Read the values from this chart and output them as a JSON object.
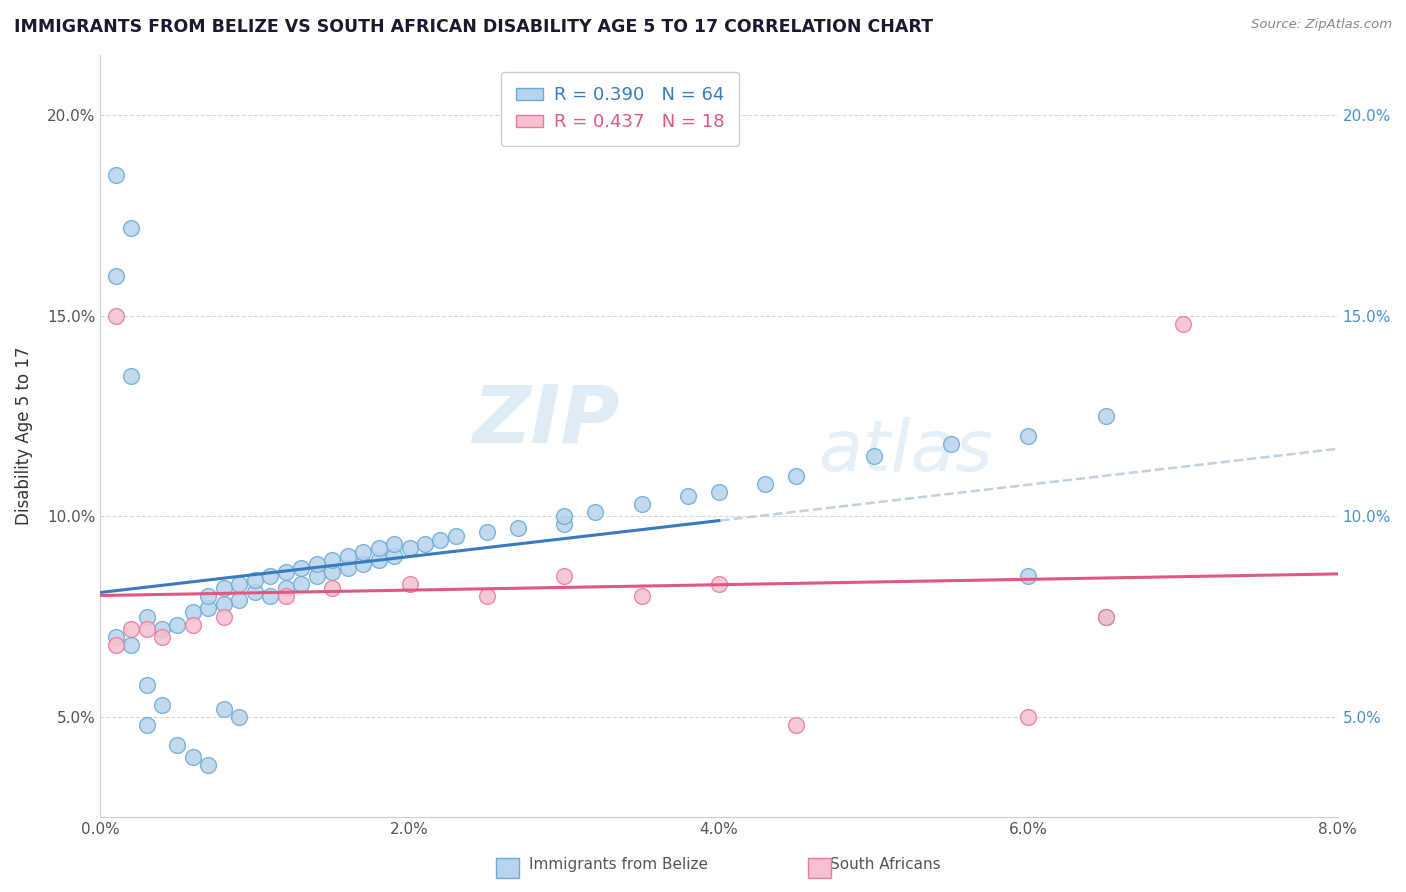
{
  "title": "IMMIGRANTS FROM BELIZE VS SOUTH AFRICAN DISABILITY AGE 5 TO 17 CORRELATION CHART",
  "source": "Source: ZipAtlas.com",
  "ylabel": "Disability Age 5 to 17",
  "belize_R": 0.39,
  "belize_N": 64,
  "sa_R": 0.437,
  "sa_N": 18,
  "belize_color": "#b8d4ed",
  "belize_edge": "#6aaad4",
  "sa_color": "#f5c0d0",
  "sa_edge": "#e8799a",
  "line_belize_color": "#3a7abf",
  "line_sa_color": "#e05880",
  "line_trend_color": "#b8c8d8",
  "background_color": "#ffffff",
  "xlim": [
    0.0,
    0.08
  ],
  "ylim": [
    0.025,
    0.215
  ],
  "x_ticks": [
    0.0,
    0.02,
    0.04,
    0.06,
    0.08
  ],
  "y_ticks": [
    0.05,
    0.1,
    0.15,
    0.2
  ],
  "belize_x": [
    0.001,
    0.002,
    0.003,
    0.004,
    0.005,
    0.006,
    0.007,
    0.007,
    0.008,
    0.008,
    0.009,
    0.009,
    0.01,
    0.01,
    0.011,
    0.011,
    0.012,
    0.012,
    0.013,
    0.013,
    0.014,
    0.014,
    0.015,
    0.015,
    0.016,
    0.016,
    0.017,
    0.017,
    0.018,
    0.018,
    0.019,
    0.019,
    0.02,
    0.021,
    0.022,
    0.023,
    0.025,
    0.027,
    0.03,
    0.03,
    0.032,
    0.035,
    0.038,
    0.04,
    0.043,
    0.045,
    0.05,
    0.055,
    0.06,
    0.065,
    0.001,
    0.002,
    0.003,
    0.004,
    0.003,
    0.005,
    0.006,
    0.007,
    0.008,
    0.009,
    0.06,
    0.065,
    0.001,
    0.002
  ],
  "belize_y": [
    0.07,
    0.068,
    0.075,
    0.072,
    0.073,
    0.076,
    0.077,
    0.08,
    0.078,
    0.082,
    0.079,
    0.083,
    0.081,
    0.084,
    0.08,
    0.085,
    0.082,
    0.086,
    0.083,
    0.087,
    0.085,
    0.088,
    0.086,
    0.089,
    0.087,
    0.09,
    0.088,
    0.091,
    0.089,
    0.092,
    0.09,
    0.093,
    0.092,
    0.093,
    0.094,
    0.095,
    0.096,
    0.097,
    0.098,
    0.1,
    0.101,
    0.103,
    0.105,
    0.106,
    0.108,
    0.11,
    0.115,
    0.118,
    0.12,
    0.125,
    0.16,
    0.135,
    0.058,
    0.053,
    0.048,
    0.043,
    0.04,
    0.038,
    0.052,
    0.05,
    0.085,
    0.075,
    0.185,
    0.172
  ],
  "sa_x": [
    0.001,
    0.003,
    0.004,
    0.006,
    0.008,
    0.012,
    0.015,
    0.02,
    0.025,
    0.03,
    0.035,
    0.04,
    0.045,
    0.06,
    0.065,
    0.07,
    0.001,
    0.002
  ],
  "sa_y": [
    0.068,
    0.072,
    0.07,
    0.073,
    0.075,
    0.08,
    0.082,
    0.083,
    0.08,
    0.085,
    0.08,
    0.083,
    0.048,
    0.05,
    0.075,
    0.148,
    0.15,
    0.072
  ]
}
